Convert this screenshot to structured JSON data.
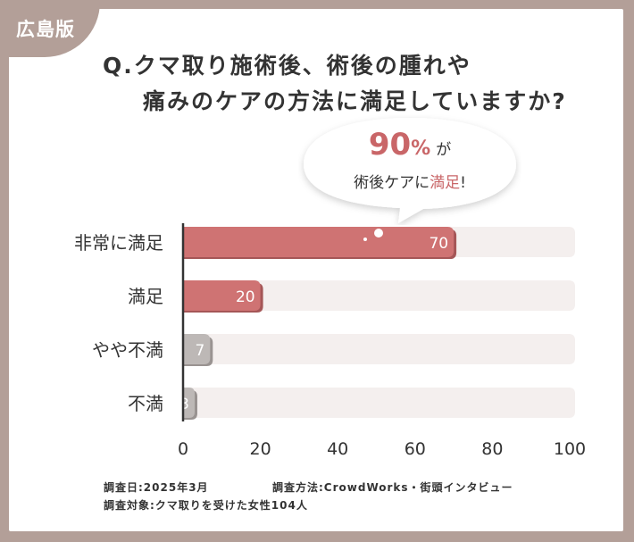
{
  "region_tag": "広島版",
  "title_line1": "Q.クマ取り施術後、術後の腫れや",
  "title_line2": "痛みのケアの方法に満足していますか?",
  "callout": {
    "percent": "90",
    "percent_suffix": "%",
    "percent_tail": "が",
    "line2_prefix": "術後ケアに",
    "line2_highlight": "満足",
    "line2_suffix": "!"
  },
  "chart_data": {
    "type": "bar",
    "orientation": "horizontal",
    "categories": [
      "非常に満足",
      "満足",
      "やや不満",
      "不満"
    ],
    "values": [
      70,
      20,
      7,
      3
    ],
    "xlim": [
      0,
      100
    ],
    "x_ticks": [
      "0",
      "20",
      "40",
      "60",
      "80",
      "100"
    ],
    "colors": {
      "positive": "#cf7373",
      "negative": "#bdb8b6",
      "track": "#f4efee",
      "axis": "#333333"
    }
  },
  "notes": {
    "date": "調査日:2025年3月",
    "method": "調査方法:CrowdWorks・街頭インタビュー",
    "target": "調査対象:クマ取りを受けた女性104人"
  }
}
